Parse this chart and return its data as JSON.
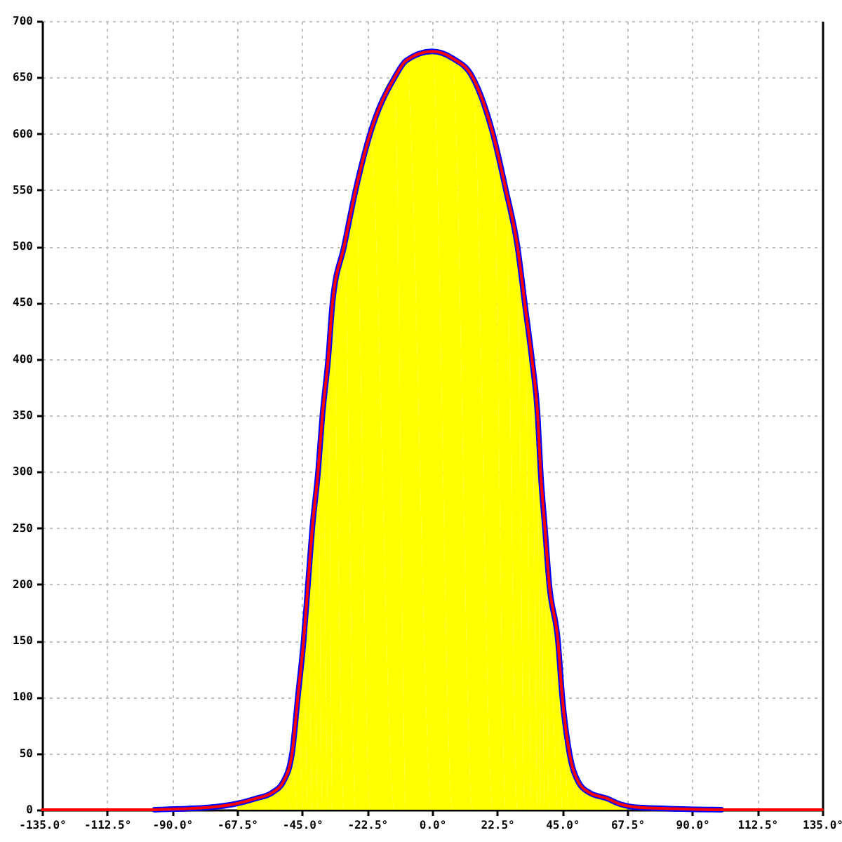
{
  "chart_data": {
    "type": "line",
    "xlim": [
      -135,
      135
    ],
    "xticks": [
      {
        "value": -135,
        "label": "-135.0°"
      },
      {
        "value": -112.5,
        "label": "-112.5°"
      },
      {
        "value": -90,
        "label": "-90.0°"
      },
      {
        "value": -67.5,
        "label": "-67.5°"
      },
      {
        "value": -45,
        "label": "-45.0°"
      },
      {
        "value": -22.5,
        "label": "-22.5°"
      },
      {
        "value": 0,
        "label": "0.0°"
      },
      {
        "value": 22.5,
        "label": "22.5°"
      },
      {
        "value": 45,
        "label": "45.0°"
      },
      {
        "value": 67.5,
        "label": "67.5°"
      },
      {
        "value": 90,
        "label": "90.0°"
      },
      {
        "value": 112.5,
        "label": "112.5°"
      },
      {
        "value": 135,
        "label": "135.0°"
      }
    ],
    "ylim": [
      0,
      700
    ],
    "yticks": [
      0,
      50,
      100,
      150,
      200,
      250,
      300,
      350,
      400,
      450,
      500,
      550,
      600,
      650,
      700
    ],
    "grid": true,
    "line_style": "solid",
    "series": [
      {
        "type": "area",
        "color": "#ffff00",
        "x": [
          -67.5,
          -61,
          -55.5,
          -51.5,
          -48.5,
          -46.5,
          -44.5,
          -43,
          -41.5,
          -39.5,
          -38,
          -36,
          -34.5,
          -30.5,
          -26.5,
          -21.5,
          -13,
          -9,
          0,
          7,
          14,
          21,
          25.5,
          29.5,
          32,
          34.5,
          36.5,
          37.5,
          39,
          40.5,
          43.5,
          45,
          47.5,
          50.5,
          54.5,
          60.5,
          65,
          67.5
        ],
        "values": [
          5,
          10,
          15,
          25,
          50,
          100,
          150,
          200,
          250,
          300,
          350,
          400,
          450,
          500,
          550,
          600,
          650,
          665,
          673,
          667,
          650,
          600,
          550,
          500,
          450,
          400,
          350,
          300,
          250,
          200,
          150,
          100,
          50,
          25,
          15,
          10,
          5,
          4
        ]
      },
      {
        "color": "#0000ff",
        "x": [
          -96,
          -85,
          -77.5,
          -68.5,
          -61,
          -55.5,
          -51.5,
          -48.5,
          -46.5,
          -44.5,
          -43,
          -41.5,
          -39.5,
          -38,
          -36,
          -34.5,
          -30.5,
          -26.5,
          -21.5,
          -13,
          -9,
          0,
          7,
          14,
          21,
          25.5,
          29.5,
          32,
          34.5,
          36.5,
          37.5,
          39,
          40.5,
          43.5,
          45,
          47.5,
          50.5,
          54.5,
          60.5,
          65,
          71.5,
          82,
          100
        ],
        "values": [
          0,
          1,
          2,
          5,
          10,
          15,
          25,
          50,
          100,
          150,
          200,
          250,
          300,
          350,
          400,
          450,
          500,
          550,
          600,
          650,
          665,
          673,
          667,
          650,
          600,
          550,
          500,
          450,
          400,
          350,
          300,
          250,
          200,
          150,
          100,
          50,
          25,
          15,
          10,
          5,
          2,
          1,
          0
        ]
      },
      {
        "color": "#ff0000",
        "x": [
          -135,
          -96,
          -85,
          -77.5,
          -68.5,
          -61,
          -55.5,
          -51.5,
          -48.5,
          -46.5,
          -44.5,
          -43,
          -41.5,
          -39.5,
          -38,
          -36,
          -34.5,
          -30.5,
          -26.5,
          -21.5,
          -13,
          -9,
          0,
          7,
          14,
          21,
          25.5,
          29.5,
          32,
          34.5,
          36.5,
          37.5,
          39,
          40.5,
          43.5,
          45,
          47.5,
          50.5,
          54.5,
          60.5,
          65,
          71.5,
          82,
          100,
          135
        ],
        "values": [
          0,
          0,
          1,
          2,
          5,
          10,
          15,
          25,
          50,
          100,
          150,
          200,
          250,
          300,
          350,
          400,
          450,
          500,
          550,
          600,
          650,
          665,
          673,
          667,
          650,
          600,
          550,
          500,
          450,
          400,
          350,
          300,
          250,
          200,
          150,
          100,
          50,
          25,
          15,
          10,
          5,
          2,
          1,
          0,
          0
        ]
      }
    ]
  }
}
